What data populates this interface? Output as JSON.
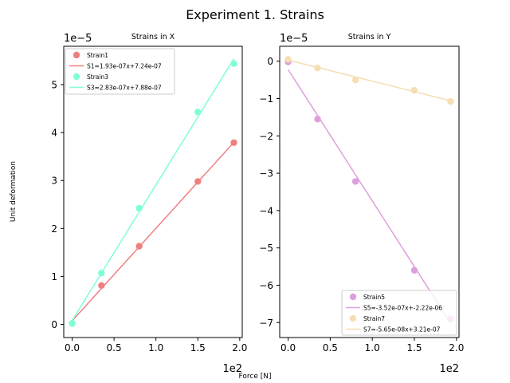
{
  "figure": {
    "title": "Experiment 1. Strains",
    "xlabel": "Force [N]",
    "ylabel": "Unit deformation"
  },
  "chart_data": [
    {
      "type": "scatter",
      "title": "Strains in X",
      "xlim": [
        -0.1,
        2.03
      ],
      "ylim": [
        -0.275,
        5.8
      ],
      "xticks": [
        0.0,
        0.5,
        1.0,
        1.5,
        2.0
      ],
      "xtick_labels": [
        "0.0",
        "0.5",
        "1.0",
        "1.5",
        "2.0"
      ],
      "yticks": [
        0,
        1,
        2,
        3,
        4,
        5
      ],
      "ytick_labels": [
        "0",
        "1",
        "2",
        "3",
        "4",
        "5"
      ],
      "x_offset_label": "1e2",
      "y_offset_label": "1e−5",
      "grid": false,
      "legend_position": "top-left",
      "series": [
        {
          "name": "Strain1",
          "fit_label": "S1=1.93e-07x+7.24e-07",
          "color": "#f08080",
          "x": [
            0.0,
            0.35,
            0.8,
            1.5,
            1.93
          ],
          "y": [
            0.02,
            0.81,
            1.63,
            2.98,
            3.79
          ],
          "fit": {
            "slope": 1.93,
            "intercept": 0.0724
          }
        },
        {
          "name": "Strain3",
          "fit_label": "S3=2.83e-07x+7.88e-07",
          "color": "#7fffd4",
          "x": [
            0.0,
            0.35,
            0.8,
            1.5,
            1.93
          ],
          "y": [
            0.02,
            1.07,
            2.42,
            4.43,
            5.44
          ],
          "fit": {
            "slope": 2.83,
            "intercept": 0.0788
          }
        }
      ]
    },
    {
      "type": "scatter",
      "title": "Strains in Y",
      "xlim": [
        -0.1,
        2.03
      ],
      "ylim": [
        -7.4,
        0.4
      ],
      "xticks": [
        0.0,
        0.5,
        1.0,
        1.5,
        2.0
      ],
      "xtick_labels": [
        "0.0",
        "0.5",
        "1.0",
        "1.5",
        "2.0"
      ],
      "yticks": [
        0,
        -1,
        -2,
        -3,
        -4,
        -5,
        -6,
        -7
      ],
      "ytick_labels": [
        "0",
        "−1",
        "−2",
        "−3",
        "−4",
        "−5",
        "−6",
        "−7"
      ],
      "x_offset_label": "1e2",
      "y_offset_label": "1e−5",
      "grid": false,
      "legend_position": "bottom-right",
      "series": [
        {
          "name": "Strain5",
          "fit_label": "S5=-3.52e-07x+-2.22e-06",
          "color": "#dda0dd",
          "x": [
            0.0,
            0.35,
            0.8,
            1.5,
            1.93
          ],
          "y": [
            -0.02,
            -1.55,
            -3.22,
            -5.6,
            -6.9
          ],
          "fit": {
            "slope": -3.52,
            "intercept": -0.222
          }
        },
        {
          "name": "Strain7",
          "fit_label": "S7=-5.65e-08x+3.21e-07",
          "color": "#f5deb3",
          "x": [
            0.0,
            0.35,
            0.8,
            1.5,
            1.93
          ],
          "y": [
            0.05,
            -0.18,
            -0.5,
            -0.78,
            -1.08
          ],
          "fit": {
            "slope": -0.565,
            "intercept": 0.0321
          }
        }
      ]
    }
  ]
}
